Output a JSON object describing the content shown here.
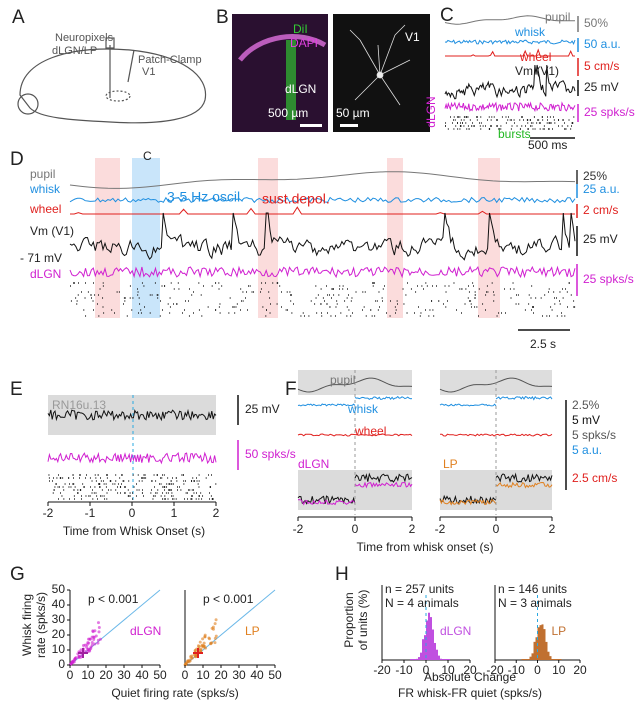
{
  "panel_labels": [
    "A",
    "B",
    "C",
    "D",
    "E",
    "F",
    "G",
    "H"
  ],
  "a": {
    "probe": "Neuropixels",
    "probe_target": "dLGN/LP",
    "patch": "Patch-Clamp",
    "patch_target": "V1"
  },
  "b": {
    "dii": "DiI",
    "dapi": "DAPI",
    "region": "dLGN",
    "scale_left": "500 µm",
    "scale_right": "50 µm",
    "region_right": "V1"
  },
  "c": {
    "pupil": "pupil",
    "whisk": "whisk",
    "wheel": "wheel",
    "vm": "Vm (V1)",
    "dlgn": "dLGN",
    "bursts": "bursts",
    "scale_pupil": "50%",
    "scale_whisk": "50 a.u.",
    "scale_wheel": "5 cm/s",
    "scale_vm": "25 mV",
    "scale_rate": "25 spks/s",
    "scale_time": "500 ms"
  },
  "d": {
    "zoom_marker": "C",
    "pupil": "pupil",
    "whisk": "whisk",
    "wheel": "wheel",
    "vm": "Vm (V1)",
    "rest": "- 71 mV",
    "dlgn": "dLGN",
    "oscillation": "3-5 Hz oscil.",
    "depolarization": "sust.depol.",
    "scale_pupil": "25%",
    "scale_whisk": "25 a.u.",
    "scale_wheel": "2 cm/s",
    "scale_vm": "25 mV",
    "scale_rate": "25 spks/s",
    "scale_time": "2.5 s"
  },
  "e": {
    "unit": "RN16u.13",
    "scale_vm": "25 mV",
    "scale_rate": "50 spks/s",
    "xticks": [
      -2,
      -1,
      0,
      1,
      2
    ],
    "xlabel": "Time from Whisk Onset (s)"
  },
  "f": {
    "pupil": "pupil",
    "whisk": "whisk",
    "wheel": "wheel",
    "left": "dLGN",
    "right": "LP",
    "scales": [
      "2.5%",
      "5 mV",
      "5 spks/s",
      "5 a.u.",
      "2.5 cm/s"
    ],
    "xticks": [
      -2,
      0,
      2
    ],
    "xlabel": "Time from whisk onset (s)"
  },
  "g": {
    "ylabel": [
      "Whisk firing",
      "rate (spks/s)"
    ],
    "ticks": [
      0,
      10,
      20,
      30,
      40,
      50
    ],
    "p_left": "p < 0.001",
    "p_right": "p < 0.001",
    "left": "dLGN",
    "right": "LP",
    "xlabel": "Quiet firing rate (spks/s)"
  },
  "h": {
    "ylabel": [
      "Proportion",
      "of units (%)"
    ],
    "xticks": [
      -20,
      -10,
      0,
      10,
      20
    ],
    "left": {
      "n": "n = 257 units",
      "animals": "N = 4 animals",
      "area": "dLGN"
    },
    "right": {
      "n": "n = 146 units",
      "animals": "N = 3 animals",
      "area": "LP"
    },
    "xlabel": [
      "Absolute Change",
      "FR whisk-FR quiet (spks/s)"
    ]
  }
}
